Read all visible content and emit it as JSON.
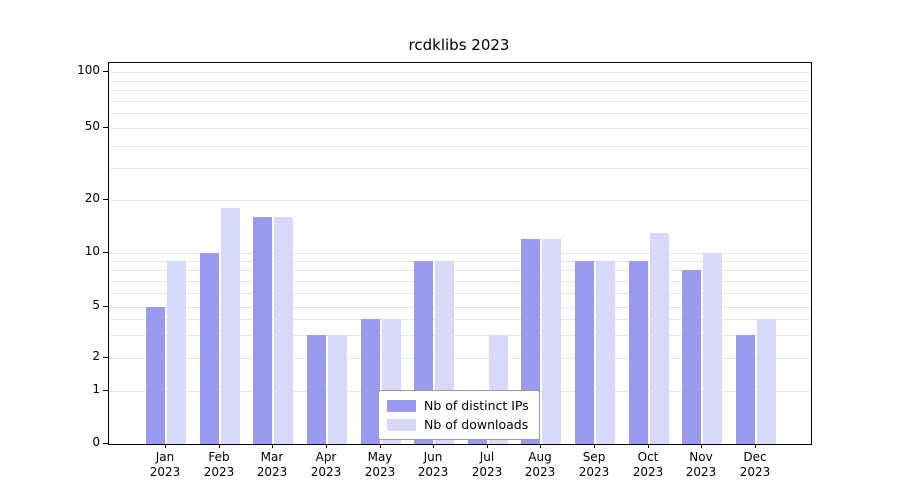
{
  "title": "rcdklibs 2023",
  "chart_data": {
    "type": "bar",
    "title": "rcdklibs 2023",
    "categories": [
      "Jan",
      "Feb",
      "Mar",
      "Apr",
      "May",
      "Jun",
      "Jul",
      "Aug",
      "Sep",
      "Oct",
      "Nov",
      "Dec"
    ],
    "year": "2023",
    "series": [
      {
        "name": "Nb of distinct IPs",
        "color": "#9a9aee",
        "values": [
          5,
          10,
          16,
          3,
          4,
          9,
          1,
          12,
          9,
          9,
          8,
          3
        ]
      },
      {
        "name": "Nb of downloads",
        "color": "#d8d8f8",
        "values": [
          9,
          18,
          16,
          3,
          4,
          9,
          3,
          12,
          9,
          13,
          10,
          4
        ]
      }
    ],
    "yticks": [
      0,
      1,
      2,
      5,
      10,
      20,
      50,
      100
    ],
    "ylim": [
      0,
      100
    ],
    "yscale": "log-symlog",
    "grid": true,
    "gridline_color": "#e5e5e5",
    "legend_position": "bottom-center"
  }
}
